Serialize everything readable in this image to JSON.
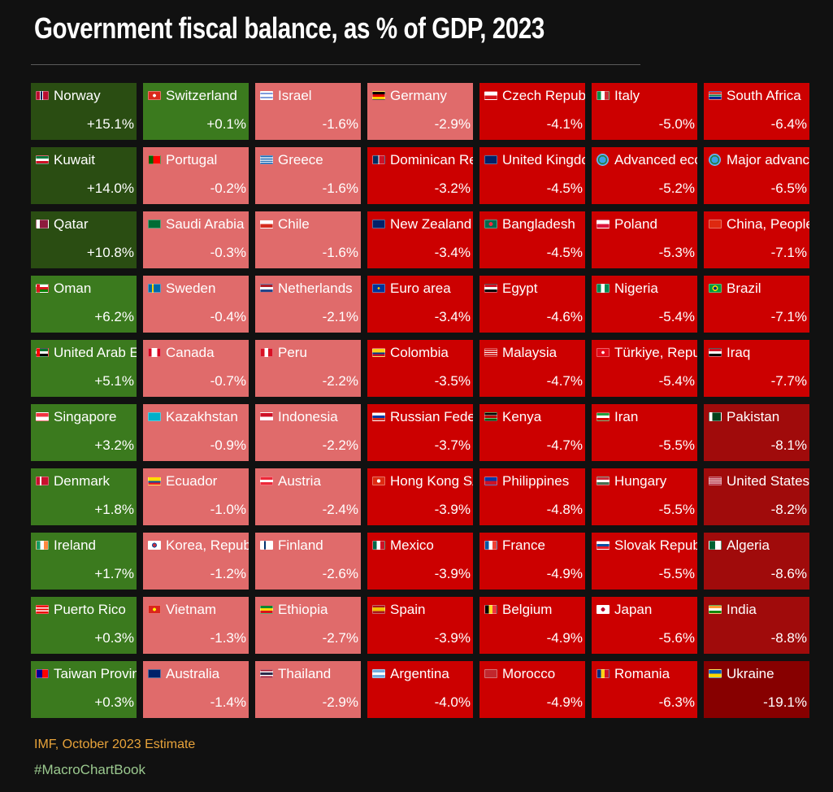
{
  "header": {
    "title": "Government fiscal balance, as % of GDP, 2023"
  },
  "footer": {
    "source": "IMF, October 2023 Estimate",
    "hashtag": "#MacroChartBook"
  },
  "colors": {
    "strong_positive": "#2a4d12",
    "positive": "#3b7a1e",
    "mild_negative": "#e06b6b",
    "negative": "#cc0000",
    "strong_negative": "#a00b0b",
    "extreme_negative": "#870000"
  },
  "chart_data": {
    "type": "heatmap",
    "title": "Government fiscal balance, as % of GDP, 2023",
    "unit": "% of GDP",
    "columns": [
      [
        {
          "name": "Norway",
          "value": 15.1,
          "label": "+15.1%",
          "flag": "flag-norway"
        },
        {
          "name": "Kuwait",
          "value": 14.0,
          "label": "+14.0%",
          "flag": "flag-kuwait"
        },
        {
          "name": "Qatar",
          "value": 10.8,
          "label": "+10.8%",
          "flag": "flag-qatar"
        },
        {
          "name": "Oman",
          "value": 6.2,
          "label": "+6.2%",
          "flag": "flag-oman"
        },
        {
          "name": "United Arab E",
          "value": 5.1,
          "label": "+5.1%",
          "flag": "flag-uae"
        },
        {
          "name": "Singapore",
          "value": 3.2,
          "label": "+3.2%",
          "flag": "flag-singapore"
        },
        {
          "name": "Denmark",
          "value": 1.8,
          "label": "+1.8%",
          "flag": "flag-denmark"
        },
        {
          "name": "Ireland",
          "value": 1.7,
          "label": "+1.7%",
          "flag": "flag-ireland"
        },
        {
          "name": "Puerto Rico",
          "value": 0.3,
          "label": "+0.3%",
          "flag": "flag-puerto-rico"
        },
        {
          "name": "Taiwan Province",
          "value": 0.3,
          "label": "+0.3%",
          "flag": "flag-taiwan"
        }
      ],
      [
        {
          "name": "Switzerland",
          "value": 0.1,
          "label": "+0.1%",
          "flag": "flag-switzerland"
        },
        {
          "name": "Portugal",
          "value": -0.2,
          "label": "-0.2%",
          "flag": "flag-portugal"
        },
        {
          "name": "Saudi Arabia",
          "value": -0.3,
          "label": "-0.3%",
          "flag": "flag-saudi-arabia"
        },
        {
          "name": "Sweden",
          "value": -0.4,
          "label": "-0.4%",
          "flag": "flag-sweden"
        },
        {
          "name": "Canada",
          "value": -0.7,
          "label": "-0.7%",
          "flag": "flag-canada"
        },
        {
          "name": "Kazakhstan",
          "value": -0.9,
          "label": "-0.9%",
          "flag": "flag-kazakhstan"
        },
        {
          "name": "Ecuador",
          "value": -1.0,
          "label": "-1.0%",
          "flag": "flag-ecuador"
        },
        {
          "name": "Korea, Republic",
          "value": -1.2,
          "label": "-1.2%",
          "flag": "flag-korea"
        },
        {
          "name": "Vietnam",
          "value": -1.3,
          "label": "-1.3%",
          "flag": "flag-vietnam"
        },
        {
          "name": "Australia",
          "value": -1.4,
          "label": "-1.4%",
          "flag": "flag-australia"
        }
      ],
      [
        {
          "name": "Israel",
          "value": -1.6,
          "label": "-1.6%",
          "flag": "flag-israel"
        },
        {
          "name": "Greece",
          "value": -1.6,
          "label": "-1.6%",
          "flag": "flag-greece"
        },
        {
          "name": "Chile",
          "value": -1.6,
          "label": "-1.6%",
          "flag": "flag-chile"
        },
        {
          "name": "Netherlands",
          "value": -2.1,
          "label": "-2.1%",
          "flag": "flag-netherlands"
        },
        {
          "name": "Peru",
          "value": -2.2,
          "label": "-2.2%",
          "flag": "flag-peru"
        },
        {
          "name": "Indonesia",
          "value": -2.2,
          "label": "-2.2%",
          "flag": "flag-indonesia"
        },
        {
          "name": "Austria",
          "value": -2.4,
          "label": "-2.4%",
          "flag": "flag-austria"
        },
        {
          "name": "Finland",
          "value": -2.6,
          "label": "-2.6%",
          "flag": "flag-finland"
        },
        {
          "name": "Ethiopia",
          "value": -2.7,
          "label": "-2.7%",
          "flag": "flag-ethiopia"
        },
        {
          "name": "Thailand",
          "value": -2.9,
          "label": "-2.9%",
          "flag": "flag-thailand"
        }
      ],
      [
        {
          "name": "Germany",
          "value": -2.9,
          "label": "-2.9%",
          "flag": "flag-germany"
        },
        {
          "name": "Dominican Republic",
          "value": -3.2,
          "label": "-3.2%",
          "flag": "flag-dominican-republic"
        },
        {
          "name": "New Zealand",
          "value": -3.4,
          "label": "-3.4%",
          "flag": "flag-new-zealand"
        },
        {
          "name": "Euro area",
          "value": -3.4,
          "label": "-3.4%",
          "flag": "flag-eu"
        },
        {
          "name": "Colombia",
          "value": -3.5,
          "label": "-3.5%",
          "flag": "flag-colombia"
        },
        {
          "name": "Russian Federation",
          "value": -3.7,
          "label": "-3.7%",
          "flag": "flag-russia"
        },
        {
          "name": "Hong Kong SAR",
          "value": -3.9,
          "label": "-3.9%",
          "flag": "flag-hong-kong"
        },
        {
          "name": "Mexico",
          "value": -3.9,
          "label": "-3.9%",
          "flag": "flag-mexico"
        },
        {
          "name": "Spain",
          "value": -3.9,
          "label": "-3.9%",
          "flag": "flag-spain"
        },
        {
          "name": "Argentina",
          "value": -4.0,
          "label": "-4.0%",
          "flag": "flag-argentina"
        }
      ],
      [
        {
          "name": "Czech Republic",
          "value": -4.1,
          "label": "-4.1%",
          "flag": "flag-czech"
        },
        {
          "name": "United Kingdom",
          "value": -4.5,
          "label": "-4.5%",
          "flag": "flag-uk"
        },
        {
          "name": "Bangladesh",
          "value": -4.5,
          "label": "-4.5%",
          "flag": "flag-bangladesh"
        },
        {
          "name": "Egypt",
          "value": -4.6,
          "label": "-4.6%",
          "flag": "flag-egypt"
        },
        {
          "name": "Malaysia",
          "value": -4.7,
          "label": "-4.7%",
          "flag": "flag-malaysia"
        },
        {
          "name": "Kenya",
          "value": -4.7,
          "label": "-4.7%",
          "flag": "flag-kenya"
        },
        {
          "name": "Philippines",
          "value": -4.8,
          "label": "-4.8%",
          "flag": "flag-philippines"
        },
        {
          "name": "France",
          "value": -4.9,
          "label": "-4.9%",
          "flag": "flag-france"
        },
        {
          "name": "Belgium",
          "value": -4.9,
          "label": "-4.9%",
          "flag": "flag-belgium"
        },
        {
          "name": "Morocco",
          "value": -4.9,
          "label": "-4.9%",
          "flag": "flag-morocco"
        }
      ],
      [
        {
          "name": "Italy",
          "value": -5.0,
          "label": "-5.0%",
          "flag": "flag-italy"
        },
        {
          "name": "Advanced economies",
          "value": -5.2,
          "label": "-5.2%",
          "flag": "globe-icon"
        },
        {
          "name": "Poland",
          "value": -5.3,
          "label": "-5.3%",
          "flag": "flag-poland"
        },
        {
          "name": "Nigeria",
          "value": -5.4,
          "label": "-5.4%",
          "flag": "flag-nigeria"
        },
        {
          "name": "Türkiye, Republic",
          "value": -5.4,
          "label": "-5.4%",
          "flag": "flag-turkiye"
        },
        {
          "name": "Iran",
          "value": -5.5,
          "label": "-5.5%",
          "flag": "flag-iran"
        },
        {
          "name": "Hungary",
          "value": -5.5,
          "label": "-5.5%",
          "flag": "flag-hungary"
        },
        {
          "name": "Slovak Republic",
          "value": -5.5,
          "label": "-5.5%",
          "flag": "flag-slovakia"
        },
        {
          "name": "Japan",
          "value": -5.6,
          "label": "-5.6%",
          "flag": "flag-japan"
        },
        {
          "name": "Romania",
          "value": -6.3,
          "label": "-6.3%",
          "flag": "flag-romania"
        }
      ],
      [
        {
          "name": "South Africa",
          "value": -6.4,
          "label": "-6.4%",
          "flag": "flag-south-africa"
        },
        {
          "name": "Major advanced",
          "value": -6.5,
          "label": "-6.5%",
          "flag": "globe-icon"
        },
        {
          "name": "China, People's",
          "value": -7.1,
          "label": "-7.1%",
          "flag": "flag-china"
        },
        {
          "name": "Brazil",
          "value": -7.1,
          "label": "-7.1%",
          "flag": "flag-brazil"
        },
        {
          "name": "Iraq",
          "value": -7.7,
          "label": "-7.7%",
          "flag": "flag-iraq"
        },
        {
          "name": "Pakistan",
          "value": -8.1,
          "label": "-8.1%",
          "flag": "flag-pakistan"
        },
        {
          "name": "United States",
          "value": -8.2,
          "label": "-8.2%",
          "flag": "flag-usa"
        },
        {
          "name": "Algeria",
          "value": -8.6,
          "label": "-8.6%",
          "flag": "flag-algeria"
        },
        {
          "name": "India",
          "value": -8.8,
          "label": "-8.8%",
          "flag": "flag-india"
        },
        {
          "name": "Ukraine",
          "value": -19.1,
          "label": "-19.1%",
          "flag": "flag-ukraine"
        }
      ]
    ]
  }
}
